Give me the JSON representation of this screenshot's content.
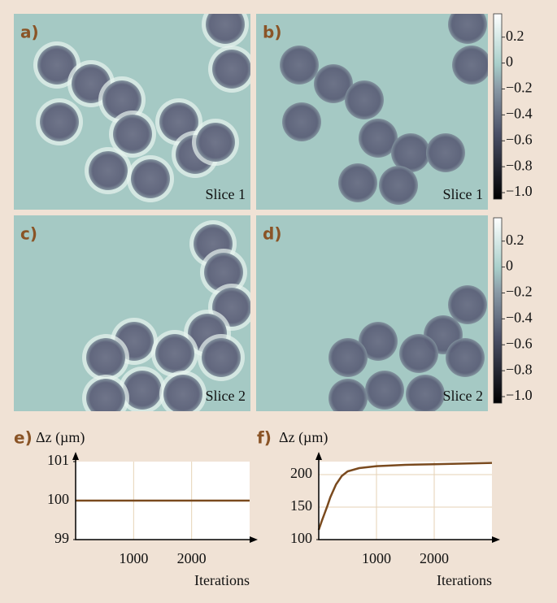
{
  "panels": [
    {
      "label": "a)",
      "caption": "Slice 1"
    },
    {
      "label": "b)",
      "caption": "Slice 1"
    },
    {
      "label": "c)",
      "caption": "Slice 2"
    },
    {
      "label": "d)",
      "caption": "Slice 2"
    }
  ],
  "colorbar": {
    "clim": [
      -1.05,
      0.38
    ],
    "ticks": [
      0.2,
      0,
      {
        "value": -0.2,
        "label": "−0.2"
      },
      {
        "value": -0.4,
        "label": "−0.4"
      },
      {
        "value": -0.6,
        "label": "−0.6"
      },
      {
        "value": -0.8,
        "label": "−0.8"
      },
      {
        "value": -1.0,
        "label": "−1.0"
      }
    ]
  },
  "chart_data": [
    {
      "type": "line",
      "panel_label": "e)",
      "ylabel": "Δz (µm)",
      "xlabel": "Iterations",
      "x": [
        0,
        3000
      ],
      "series": [
        {
          "color": "#7a4a1e",
          "values": [
            100,
            100
          ]
        }
      ],
      "xlim": [
        0,
        3000
      ],
      "ylim": [
        99,
        101
      ],
      "xticks": [
        1000,
        2000
      ],
      "yticks": [
        99,
        100,
        101
      ],
      "grid": true
    },
    {
      "type": "line",
      "panel_label": "f)",
      "ylabel": "Δz (µm)",
      "xlabel": "Iterations",
      "x": [
        0,
        50,
        100,
        150,
        200,
        300,
        400,
        500,
        700,
        1000,
        1500,
        2000,
        3000
      ],
      "series": [
        {
          "color": "#7a4a1e",
          "values": [
            115,
            128,
            140,
            152,
            165,
            185,
            198,
            205,
            210,
            213,
            215,
            216,
            218
          ]
        }
      ],
      "xlim": [
        0,
        3000
      ],
      "ylim": [
        100,
        220
      ],
      "xticks": [
        1000,
        2000
      ],
      "yticks": [
        100,
        150,
        200
      ],
      "grid": true
    }
  ]
}
